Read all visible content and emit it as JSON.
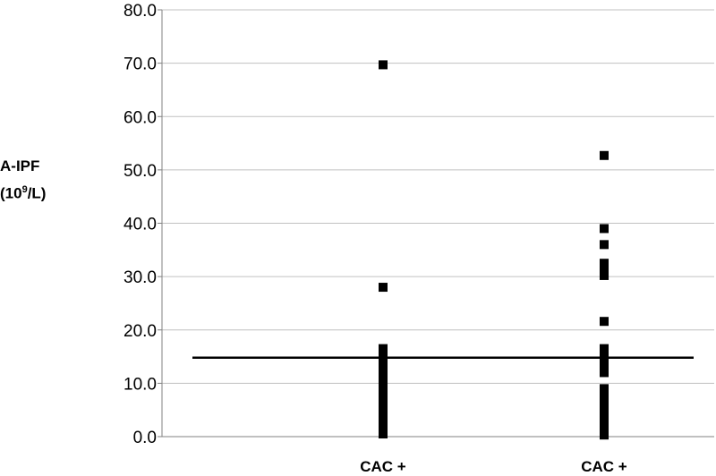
{
  "chart_data": {
    "type": "scatter",
    "title": "",
    "ylabel_main": "A-IPF",
    "ylabel_unit_open": "(10",
    "ylabel_unit_sup": "9",
    "ylabel_unit_close": "/L)",
    "ylim": [
      0,
      80
    ],
    "ytick_values": [
      0,
      10,
      20,
      30,
      40,
      50,
      60,
      70,
      80
    ],
    "ytick_labels": [
      "0.0",
      "10.0",
      "20.0",
      "30.0",
      "40.0",
      "50.0",
      "60.0",
      "70.0",
      "80.0"
    ],
    "grid": true,
    "categories": [
      "CAC +",
      "CAC +"
    ],
    "reference_line": 14.8,
    "series": [
      {
        "category_index": 0,
        "values": [
          69.7,
          28.0,
          16.5,
          15.5,
          14.5,
          13.5,
          12.5,
          11.5,
          10.5,
          9.5,
          8.5,
          7.5,
          6.5,
          5.5,
          4.5,
          3.5,
          2.5,
          1.5,
          0.5
        ]
      },
      {
        "category_index": 1,
        "values": [
          52.7,
          39.0,
          36.0,
          32.5,
          31.5,
          30.2,
          21.6,
          16.5,
          15.5,
          14.0,
          13.0,
          12.0,
          9.0,
          8.0,
          7.0,
          6.0,
          5.0,
          4.0,
          3.0,
          2.0,
          1.0,
          0.3
        ]
      }
    ],
    "colors": {
      "marker": "#000000",
      "grid": "#c0c0c0",
      "axis": "#808080",
      "refline": "#000000"
    }
  }
}
